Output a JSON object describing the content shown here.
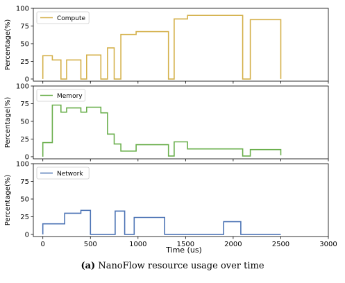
{
  "caption": {
    "label": "(a)",
    "text": "NanoFlow resource usage over time"
  },
  "chart_data": {
    "type": "line",
    "step": true,
    "shared_x": true,
    "xlabel": "Time (us)",
    "xlim": [
      -100,
      3000
    ],
    "xticks": [
      0,
      500,
      1000,
      1500,
      2000,
      2500,
      3000
    ],
    "grid": false,
    "legend_position": "top-left",
    "panels": [
      {
        "ylabel": "Percentage(%)",
        "ylim": [
          -3,
          100
        ],
        "yticks": [
          0,
          25,
          50,
          75,
          100
        ],
        "series": [
          {
            "name": "Compute",
            "color": "#d4b04a",
            "x": [
              0,
              0,
              100,
              100,
              190,
              190,
              250,
              250,
              400,
              400,
              460,
              460,
              610,
              610,
              680,
              680,
              750,
              750,
              820,
              820,
              980,
              980,
              1320,
              1320,
              1380,
              1380,
              1520,
              1520,
              2100,
              2100,
              2180,
              2180,
              2500,
              2500
            ],
            "y": [
              0,
              33,
              33,
              27,
              27,
              0,
              0,
              27,
              27,
              0,
              0,
              34,
              34,
              0,
              0,
              44,
              44,
              0,
              0,
              63,
              63,
              67,
              67,
              0,
              0,
              85,
              85,
              90,
              90,
              0,
              0,
              84,
              84,
              0
            ]
          }
        ]
      },
      {
        "ylabel": "Percentage(%)",
        "ylim": [
          -3,
          100
        ],
        "yticks": [
          0,
          25,
          50,
          75,
          100
        ],
        "series": [
          {
            "name": "Memory",
            "color": "#6aaf4c",
            "x": [
              0,
              0,
              100,
              100,
              190,
              190,
              250,
              250,
              400,
              400,
              460,
              460,
              610,
              610,
              680,
              680,
              750,
              750,
              820,
              820,
              980,
              980,
              1320,
              1320,
              1380,
              1380,
              1520,
              1520,
              2100,
              2100,
              2180,
              2180,
              2500,
              2500
            ],
            "y": [
              0,
              20,
              20,
              73,
              73,
              63,
              63,
              69,
              69,
              63,
              63,
              70,
              70,
              62,
              62,
              32,
              32,
              18,
              18,
              8,
              8,
              17,
              17,
              1,
              1,
              21,
              21,
              11,
              11,
              1,
              1,
              10,
              10,
              2
            ]
          }
        ]
      },
      {
        "ylabel": "Percentage(%)",
        "ylim": [
          -3,
          100
        ],
        "yticks": [
          0,
          25,
          50,
          75,
          100
        ],
        "series": [
          {
            "name": "Network",
            "color": "#4d74b5",
            "x": [
              0,
              0,
              230,
              230,
              400,
              400,
              500,
              500,
              760,
              760,
              860,
              860,
              960,
              960,
              1280,
              1280,
              1900,
              1900,
              2080,
              2080,
              2500
            ],
            "y": [
              0,
              15,
              15,
              30,
              30,
              34,
              34,
              0,
              0,
              33,
              33,
              0,
              0,
              24,
              24,
              0,
              0,
              18,
              18,
              0,
              0
            ]
          }
        ]
      }
    ]
  }
}
